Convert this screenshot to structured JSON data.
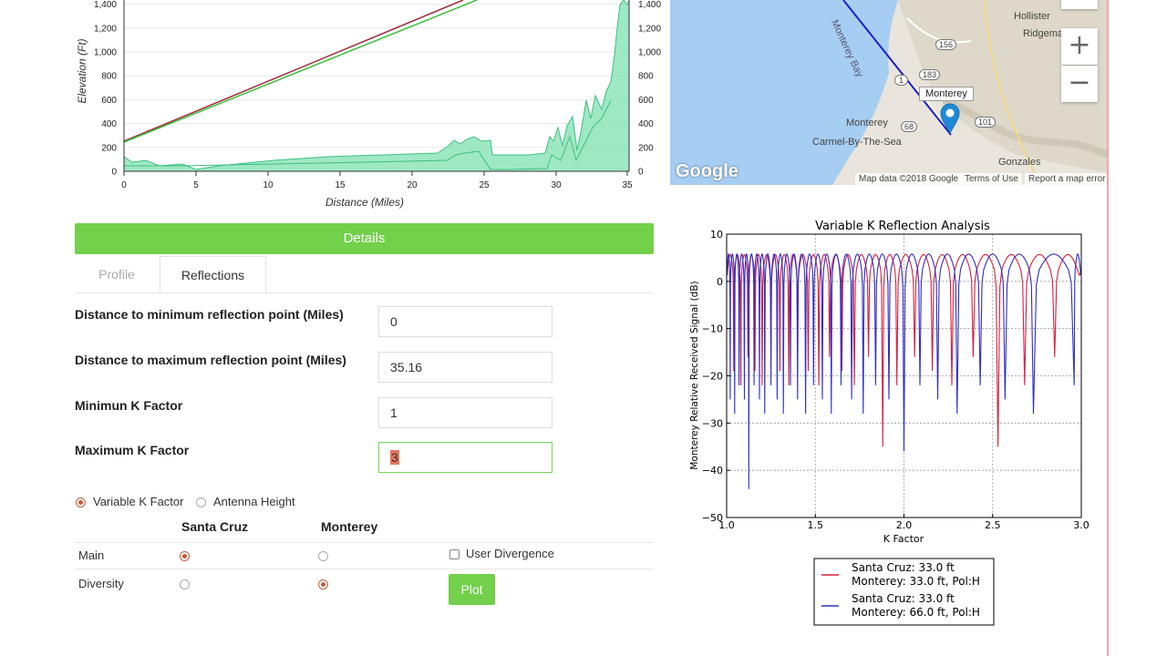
{
  "elevation_chart": {
    "y_ticks": [
      "0",
      "200",
      "400",
      "600",
      "800",
      "1,000",
      "1,200",
      "1,400"
    ],
    "y_ticks_right": [
      "0",
      "200",
      "400",
      "600",
      "800",
      "1,000",
      "1,200",
      "1,400"
    ],
    "x_ticks": [
      "0",
      "5",
      "10",
      "15",
      "20",
      "25",
      "30",
      "35"
    ],
    "ylabel": "Elevation (Ft)",
    "xlabel": "Distance (Miles)"
  },
  "map": {
    "places": {
      "hollister": "Hollister",
      "ridgemark": "Ridgema",
      "monterey_bay": "Monterey Bay",
      "monterey_city": "Monterey",
      "carmel": "Carmel-By-The-Sea",
      "gonzales": "Gonzales"
    },
    "road_shields": [
      "156",
      "183",
      "1",
      "68",
      "101"
    ],
    "marker_label": "Monterey",
    "google": "Google",
    "map_data": "Map data ©2018 Google",
    "terms": "Terms of Use",
    "report": "Report a map error",
    "zoom_in": "+",
    "zoom_out": "−"
  },
  "details": {
    "bar_label": "Details",
    "tabs": [
      "Profile",
      "Reflections"
    ],
    "fields": [
      {
        "label": "Distance to minimum reflection point (Miles)",
        "value": "0"
      },
      {
        "label": "Distance to maximum reflection point (Miles)",
        "value": "35.16"
      },
      {
        "label": "Minimun K Factor",
        "value": "1"
      },
      {
        "label": "Maximum K Factor",
        "value": "3"
      }
    ],
    "mode_options": [
      "Variable K Factor",
      "Antenna Height"
    ],
    "mode_selected": "Variable K Factor",
    "columns": [
      "Santa Cruz",
      "Monterey"
    ],
    "rows": [
      "Main",
      "Diversity"
    ],
    "user_divergence": "User Divergence",
    "plot": "Plot"
  },
  "chart_data": {
    "type": "line",
    "title": "Variable K Reflection Analysis",
    "xlabel": "K Factor",
    "ylabel": "Monterey Relative Received Signal (dB)",
    "xlim": [
      1.0,
      3.0
    ],
    "ylim": [
      -50,
      10
    ],
    "x_ticks": [
      "1.0",
      "1.5",
      "2.0",
      "2.5",
      "3.0"
    ],
    "y_ticks": [
      "10",
      "0",
      "−10",
      "−20",
      "−30",
      "−40",
      "−50"
    ],
    "grid": true,
    "legend_placement": "below",
    "colors": {
      "red": "#d62040",
      "blue": "#2e2ec8"
    },
    "series": [
      {
        "label_line1": "Santa Cruz: 33.0 ft",
        "label_line2": "Monterey: 33.0 ft, Pol:H",
        "color": "#d62040",
        "null_k": [
          1.04,
          1.08,
          1.12,
          1.16,
          1.2,
          1.25,
          1.3,
          1.35,
          1.4,
          1.46,
          1.52,
          1.58,
          1.65,
          1.72,
          1.8,
          1.88,
          1.96,
          2.06,
          2.16,
          2.27,
          2.39,
          2.53,
          2.68,
          2.85
        ],
        "deep_nulls": [
          {
            "k": 1.18,
            "db": -32
          },
          {
            "k": 1.88,
            "db": -35
          },
          {
            "k": 2.02,
            "db": -44
          },
          {
            "k": 2.54,
            "db": -35
          }
        ],
        "peak_db": 5.7,
        "shallow_null_db": -16
      },
      {
        "label_line1": "Santa Cruz: 33.0 ft",
        "label_line2": "Monterey: 66.0 ft, Pol:H",
        "color": "#2e2ec8",
        "null_k": [
          1.02,
          1.045,
          1.07,
          1.1,
          1.125,
          1.155,
          1.185,
          1.215,
          1.25,
          1.285,
          1.32,
          1.36,
          1.4,
          1.445,
          1.49,
          1.54,
          1.59,
          1.645,
          1.705,
          1.77,
          1.84,
          1.915,
          2.0,
          2.09,
          2.19,
          2.3,
          2.43,
          2.57,
          2.73,
          2.96
        ],
        "deep_nulls": [
          {
            "k": 1.12,
            "db": -44
          },
          {
            "k": 1.86,
            "db": -44
          },
          {
            "k": 2.01,
            "db": -36
          }
        ],
        "peak_db": 5.8,
        "shallow_null_db": -22
      }
    ]
  }
}
